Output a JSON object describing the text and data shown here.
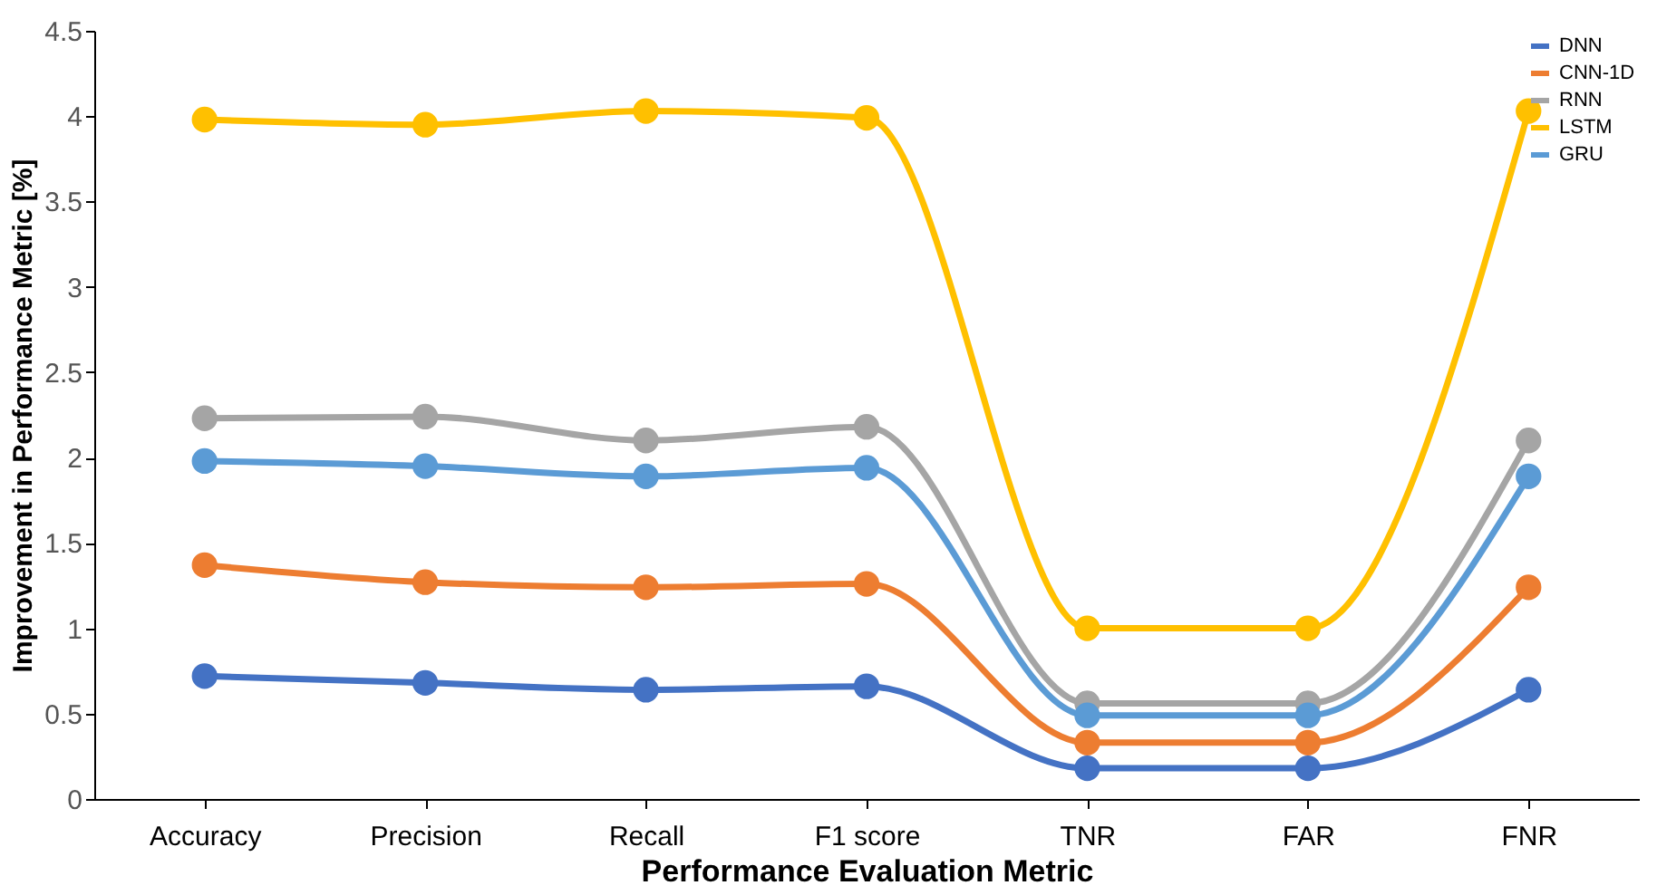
{
  "chart_data": {
    "type": "line",
    "xlabel": "Performance Evaluation Metric",
    "ylabel": "Improvement in Performance Metric [%]",
    "categories": [
      "Accuracy",
      "Precision",
      "Recall",
      "F1 score",
      "TNR",
      "FAR",
      "FNR"
    ],
    "series": [
      {
        "name": "DNN",
        "color": "#4472c4",
        "values": [
          0.72,
          0.68,
          0.64,
          0.66,
          0.18,
          0.18,
          0.64
        ]
      },
      {
        "name": "CNN-1D",
        "color": "#ed7d31",
        "values": [
          1.37,
          1.27,
          1.24,
          1.26,
          0.33,
          0.33,
          1.24
        ]
      },
      {
        "name": "RNN",
        "color": "#a5a5a5",
        "values": [
          2.23,
          2.24,
          2.1,
          2.18,
          0.56,
          0.56,
          2.1
        ]
      },
      {
        "name": "LSTM",
        "color": "#ffc000",
        "values": [
          3.98,
          3.95,
          4.03,
          3.99,
          1.0,
          1.0,
          4.03
        ]
      },
      {
        "name": "GRU",
        "color": "#5b9bd5",
        "values": [
          1.98,
          1.95,
          1.89,
          1.94,
          0.49,
          0.49,
          1.89
        ]
      }
    ],
    "ylim": [
      0,
      4.5
    ],
    "yticks": [
      0,
      0.5,
      1,
      1.5,
      2,
      2.5,
      3,
      3.5,
      4,
      4.5
    ],
    "grid": false,
    "legend": "top right",
    "marker": "circle",
    "line_style": "solid"
  }
}
